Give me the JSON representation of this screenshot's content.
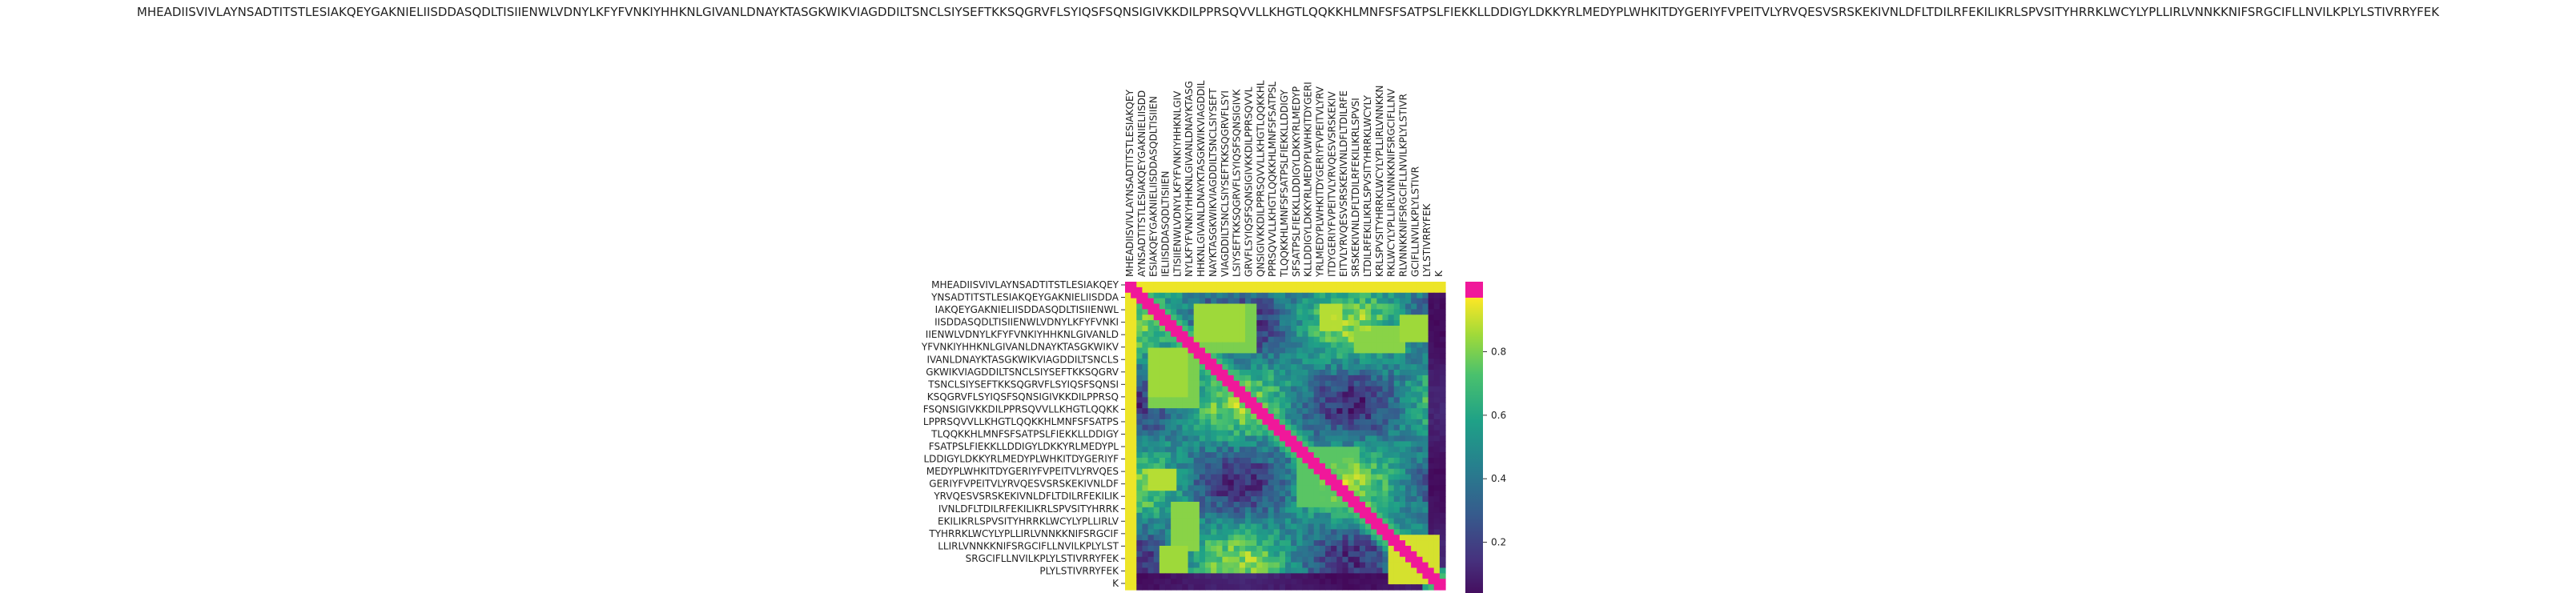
{
  "chart_data": {
    "type": "heatmap",
    "title": "MHEADIISVIVLAYNSADTITSTLESIAKQEYGAKNIELIISDDASQDLTISIIENWLVDNYLKFYFVNKIYHHKNLGIVANLDNAYKTASGKWIKVIAGDDILTSNCLSIYSEFTKKSQGRVFLSYIQSFSQNSIGIVKKDILPPRSQVVLLKHGTLQQKKHLMNFSFSATPSLFIEKKLLDDIGYLDKKYRLMEDYPLWHKITDYGERIYFVPEITVLYRVQESVSRSKEKIVNLDFLTDILRFEKILIKRLSPVSITYHRRKLWCYLYPLLIRLVNNKKNIFSRGCIFLLNVILKPLYLSTIVRRYFEK",
    "xlabel": "",
    "ylabel": "",
    "y_tick_labels": [
      "MHEADIISVIVLAYNSADTITSTLESIAKQEY",
      "YNSADTITSTLESIAKQEYGAKNIELIISDDA",
      "IAKQEYGAKNIELIISDDASQDLTISIIENWL",
      "IISDDASQDLTISIIENWLVDNYLKFYFVNKI",
      "IIENWLVDNYLKFYFVNKIYHHKNLGIVANLD",
      "YFVNKIYHHKNLGIVANLDNAYKTASGKWIKV",
      "IVANLDNAYKTASGKWIKVIAGDDILTSNCLS",
      "GKWIKVIAGDDILTSNCLSIYSEFTKKSQGRV",
      "TSNCLSIYSEFTKKSQGRVFLSYIQSFSQNSI",
      "KSQGRVFLSYIQSFSQNSIGIVKKDILPPRSQ",
      "FSQNSIGIVKKDILPPRSQVVLLKHGTLQQKK",
      "LPPRSQVVLLKHGTLQQKKHLMNFSFSATPS",
      "TLQQKKHLMNFSFSATPSLFIEKKLLDDIGY",
      "FSATPSLFIEKKLLDDIGYLDKKYRLMEDYPL",
      "LDDIGYLDKKYRLMEDYPLWHKITDYGERIYF",
      "MEDYPLWHKITDYGERIYFVPEITVLYRVQES",
      "GERIYFVPEITVLYRVQESVSRSKEKIVNLDF",
      "YRVQESVSRSKEKIVNLDFLTDILRFEKILIK",
      "IVNLDFLTDILRFEKILIKRLSPVSITYHRRK",
      "EKILIKRLSPVSITYHRRKLWCYLYPLLIRLV",
      "TYHRRKLWCYLYPLLIRLVNNKKNIFSRGCIF",
      "LLIRLVNNKKNIFSRGCIFLLNVILKPLYLST",
      "SRGCIFLLNVILKPLYLSTIVRRYFEK",
      "PLYLSTIVRRYFEK",
      "K"
    ],
    "x_tick_labels": [
      "MHEADIISVIVLAYNSADTITSTLESIAKQEY",
      "AYNSADTITSTLESIAKQEYGAKNIELIISDD",
      "ESIAKQEYGAKNIELIISDDASQDLTISIIEN",
      "IELIISDDASQDLTISIIEN",
      "LTISIIENWLVDNYLKFYFVNKIYHHKNLGIV",
      "NYLKFYFVNKIYHHKNLGIVANLDNAYKTASG",
      "HHKNLGIVANLDNAYKTASGKWIKVIAGDDIL",
      "NAYKTASGKWIKVIAGDDILTSNCLSIYSEFT",
      "VIAGDDILTSNCLSIYSEFTKKSQGRVFLSYI",
      "LSIYSEFTKKSQGRVFLSYIQSFSQNSIGIVK",
      "GRVFLSYIQSFSQNSIGIVKKDILPPRSQVVL",
      "QNSIGIVKKDILPPRSQVVLLKHGTLQQKKHL",
      "PPRSQVVLLKHGTLQQKKHLMNFSFSATPSL",
      "TLQQKKHLMNFSFSATPSLFIEKKLLDDIGY",
      "SFSATPSLFIEKKLLDDIGYLDKKYRLMEDYP",
      "KLLDDIGYLDKKYRLMEDYPLWHKITDYGERI",
      "YRLMEDYPLWHKITDYGERIYFVPEITVLYRV",
      "ITDYGERIYFVPEITVLYRVQESVSRSKEKIV",
      "EITVLYRVQESVSRSKEKIVNLDFLTDILRFE",
      "SRSKEKIVNLDFLTDILRFEKILIKRLSPVSI",
      "LTDILRFEKILIKRLSPVSITYHRRKLWCYLY",
      "KRLSPVSITYHRRKLWCYLYPLLIRLVNNKKN",
      "RKLWCYLYPLLIRLVNNKKNIFSRGCIFLLNV",
      "RLVNNKKNIFSRGCIFLLNVILKPLYLSTIVR",
      "GCIFLLNVILKPLYLSTIVR",
      "LYLSTIVRRYFEK",
      "K"
    ],
    "matrix_rows": 280,
    "matrix_cols": 280,
    "colorbar": {
      "ticks": [
        0.2,
        0.4,
        0.6,
        0.8
      ],
      "range": [
        0.0,
        0.97
      ],
      "colormap": "viridis",
      "overflow_color": "#f0189a"
    },
    "hot_blocks": [
      {
        "rows": [
          20,
          50
        ],
        "cols": [
          60,
          100
        ],
        "value": 0.85
      },
      {
        "rows": [
          60,
          110
        ],
        "cols": [
          20,
          60
        ],
        "value": 0.8
      },
      {
        "rows": [
          150,
          200
        ],
        "cols": [
          150,
          200
        ],
        "value": 0.75
      },
      {
        "rows": [
          230,
          270
        ],
        "cols": [
          230,
          270
        ],
        "value": 0.92
      },
      {
        "rows": [
          40,
          60
        ],
        "cols": [
          200,
          240
        ],
        "value": 0.82
      },
      {
        "rows": [
          170,
          185
        ],
        "cols": [
          20,
          40
        ],
        "value": 0.88
      },
      {
        "rows": [
          240,
          260
        ],
        "cols": [
          30,
          50
        ],
        "value": 0.85
      }
    ]
  }
}
